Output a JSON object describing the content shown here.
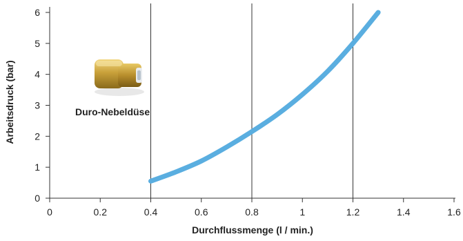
{
  "chart_data": {
    "type": "line",
    "xlabel": "Durchflussmenge (l / min.)",
    "ylabel": "Arbeitsdruck (bar)",
    "xlim": [
      0,
      1.6
    ],
    "ylim": [
      0,
      6
    ],
    "x_ticks": [
      "0",
      "0.2",
      "0.4",
      "0.6",
      "0.8",
      "1",
      "1.2",
      "1.4",
      "1.6"
    ],
    "y_ticks": [
      "0",
      "1",
      "2",
      "3",
      "4",
      "5",
      "6"
    ],
    "vertical_grid_at": [
      0.4,
      0.8,
      1.2
    ],
    "grid": "vertical lines only",
    "series": [
      {
        "color": "#5aaee0",
        "x": [
          0.4,
          0.5,
          0.6,
          0.7,
          0.8,
          0.9,
          1.0,
          1.1,
          1.2,
          1.3
        ],
        "y": [
          0.55,
          0.85,
          1.2,
          1.65,
          2.15,
          2.7,
          3.35,
          4.1,
          5.0,
          6.0
        ]
      }
    ],
    "annotation": {
      "text": "Duro-Nebeldüse",
      "icon": "brass-nozzle-icon"
    }
  }
}
